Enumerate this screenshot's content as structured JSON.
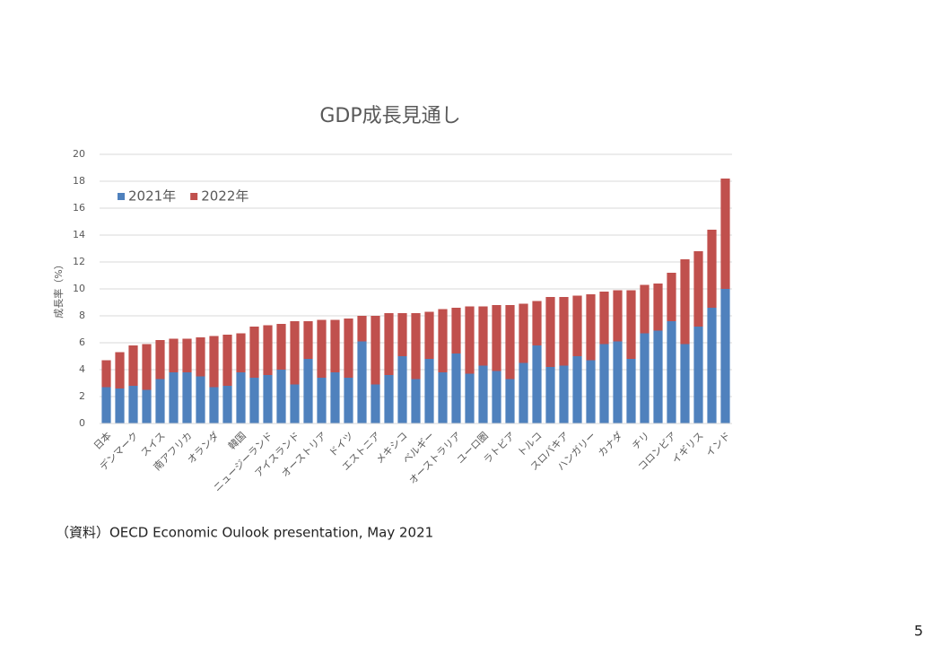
{
  "chart_data": {
    "type": "bar",
    "stacked": true,
    "title": "GDP成長見通し",
    "y_label": "成長率（%）",
    "categories": [
      "日本",
      null,
      "デンマーク",
      null,
      "スイス",
      null,
      "南アフリカ",
      null,
      "オランダ",
      null,
      "韓国",
      null,
      "ニュージーランド",
      null,
      "アイスランド",
      null,
      "オーストリア",
      null,
      "ドイツ",
      null,
      "エストニア",
      null,
      "メキシコ",
      null,
      "ベルギー",
      null,
      "オーストラリア",
      null,
      "ユーロ圏",
      null,
      "ラトビア",
      null,
      "トルコ",
      null,
      "スロバキア",
      null,
      "ハンガリー",
      null,
      "カナダ",
      null,
      "チリ",
      null,
      "コロンビア",
      null,
      "イギリス",
      null,
      "インド"
    ],
    "series": [
      {
        "name": "2021年",
        "color": "#4f81bd",
        "values": [
          2.7,
          2.6,
          2.8,
          2.5,
          3.3,
          3.8,
          3.8,
          3.5,
          2.7,
          2.8,
          3.8,
          3.4,
          3.6,
          4.0,
          2.9,
          4.8,
          3.4,
          3.8,
          3.4,
          6.1,
          2.9,
          3.6,
          5.0,
          3.3,
          4.8,
          3.8,
          5.2,
          3.7,
          4.3,
          3.9,
          3.3,
          4.5,
          5.8,
          4.2,
          4.3,
          5.0,
          4.7,
          5.9,
          6.1,
          4.8,
          6.7,
          6.9,
          7.6,
          5.9,
          7.2,
          8.6,
          10.0
        ]
      },
      {
        "name": "2022年",
        "color": "#c0504d",
        "values": [
          2.0,
          2.7,
          3.0,
          3.4,
          2.9,
          2.5,
          2.5,
          2.9,
          3.8,
          3.8,
          2.9,
          3.8,
          3.7,
          3.4,
          4.7,
          2.8,
          4.3,
          3.9,
          4.4,
          1.9,
          5.1,
          4.6,
          3.2,
          4.9,
          3.5,
          4.7,
          3.4,
          5.0,
          4.4,
          4.9,
          5.5,
          4.4,
          3.3,
          5.2,
          5.1,
          4.5,
          4.9,
          3.9,
          3.8,
          5.1,
          3.6,
          3.5,
          3.6,
          6.3,
          5.6,
          5.8,
          8.2
        ]
      }
    ],
    "ylim": [
      0,
      20
    ],
    "yticks": [
      0,
      2,
      4,
      6,
      8,
      10,
      12,
      14,
      16,
      18,
      20
    ],
    "grid": true,
    "legend": "top-left"
  },
  "source": "（資料）OECD Economic Oulook presentation, May 2021",
  "page_number": "5"
}
